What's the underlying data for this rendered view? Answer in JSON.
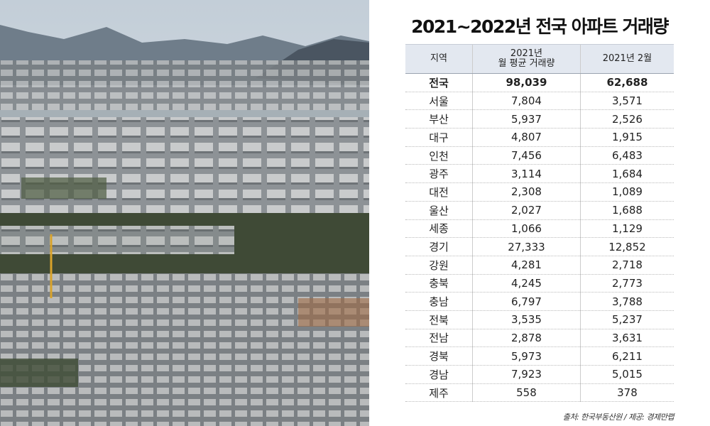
{
  "title": "2021~2022년 전국 아파트 거래량",
  "table": {
    "header": [
      "지역",
      "2021년\n월 평균 거래량",
      "2021년 2월"
    ],
    "rows": [
      [
        "전국",
        "98,039",
        "62,688"
      ],
      [
        "서울",
        "7,804",
        "3,571"
      ],
      [
        "부산",
        "5,937",
        "2,526"
      ],
      [
        "대구",
        "4,807",
        "1,915"
      ],
      [
        "인천",
        "7,456",
        "6,483"
      ],
      [
        "광주",
        "3,114",
        "1,684"
      ],
      [
        "대전",
        "2,308",
        "1,089"
      ],
      [
        "울산",
        "2,027",
        "1,688"
      ],
      [
        "세종",
        "1,066",
        "1,129"
      ],
      [
        "경기",
        "27,333",
        "12,852"
      ],
      [
        "강원",
        "4,281",
        "2,718"
      ],
      [
        "충북",
        "4,245",
        "2,773"
      ],
      [
        "충남",
        "6,797",
        "3,788"
      ],
      [
        "전북",
        "3,535",
        "5,237"
      ],
      [
        "전남",
        "2,878",
        "3,631"
      ],
      [
        "경북",
        "5,973",
        "6,211"
      ],
      [
        "경남",
        "7,923",
        "5,015"
      ],
      [
        "제주",
        "558",
        "378"
      ]
    ]
  },
  "source": "출처: 한국부동산원 / 제공: 경제만랩"
}
